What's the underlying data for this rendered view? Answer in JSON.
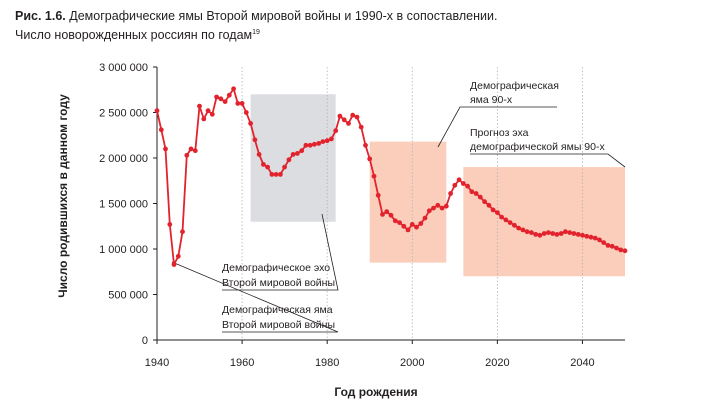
{
  "figure": {
    "label": "Рис. 1.6.",
    "title": "Демографические ямы Второй мировой войны и 1990-х в сопоставлении.",
    "subtitle": "Число новорожденных россиян по годам",
    "footnote": "19"
  },
  "colors": {
    "line": "#e2232d",
    "zone_gray": "#dcdde0",
    "zone_pink": "#fbcdbb",
    "axis": "#231f20",
    "grid": "#b3b3b3"
  },
  "annotations": [
    {
      "id": "echo-ww2",
      "lines": [
        "Демографическое эхо",
        "Второй мировой войны"
      ]
    },
    {
      "id": "pit-ww2",
      "lines": [
        "Демографическая яма",
        "Второй мировой войны"
      ]
    },
    {
      "id": "pit-90s",
      "lines": [
        "Демографическая",
        "яма 90-х"
      ]
    },
    {
      "id": "forecast-echo",
      "lines": [
        "Прогноз эха",
        "демографической ямы 90-х"
      ]
    }
  ],
  "chart_data": {
    "type": "line",
    "title": "",
    "xlabel": "Год рождения",
    "ylabel": "Число родившихся в данном году",
    "xlim": [
      1940,
      2050
    ],
    "ylim": [
      0,
      3000000
    ],
    "x_ticks": [
      1940,
      1960,
      1980,
      2000,
      2020,
      2040
    ],
    "x_tick_labels": [
      "1940",
      "1960",
      "1980",
      "2000",
      "2020",
      "2040"
    ],
    "y_ticks": [
      0,
      500000,
      1000000,
      1500000,
      2000000,
      2500000,
      3000000
    ],
    "y_tick_labels": [
      "0",
      "500 000",
      "1 000 000",
      "1 500 000",
      "2 000 000",
      "2 500 000",
      "3 000 000"
    ],
    "grid": "vertical",
    "highlight_zones": [
      {
        "x": [
          1962,
          1982
        ],
        "y": [
          1300000,
          2700000
        ],
        "color": "gray"
      },
      {
        "x": [
          1990,
          2008
        ],
        "y": [
          850000,
          2180000
        ],
        "color": "pink"
      },
      {
        "x": [
          2012,
          2050
        ],
        "y": [
          700000,
          1900000
        ],
        "color": "pink"
      }
    ],
    "series": [
      {
        "x": [
          1940,
          1941,
          1942,
          1943,
          1944,
          1945,
          1946,
          1947,
          1948,
          1949,
          1950,
          1951,
          1952,
          1953,
          1954,
          1955,
          1956,
          1957,
          1958,
          1959,
          1960,
          1961,
          1962,
          1963,
          1964,
          1965,
          1966,
          1967,
          1968,
          1969,
          1970,
          1971,
          1972,
          1973,
          1974,
          1975,
          1976,
          1977,
          1978,
          1979,
          1980,
          1981,
          1982,
          1983,
          1984,
          1985,
          1986,
          1987,
          1988,
          1989,
          1990,
          1991,
          1992,
          1993,
          1994,
          1995,
          1996,
          1997,
          1998,
          1999,
          2000,
          2001,
          2002,
          2003,
          2004,
          2005,
          2006,
          2007,
          2008,
          2009,
          2010,
          2011,
          2012,
          2013,
          2014,
          2015,
          2016,
          2017,
          2018,
          2019,
          2020,
          2021,
          2022,
          2023,
          2024,
          2025,
          2026,
          2027,
          2028,
          2029,
          2030,
          2031,
          2032,
          2033,
          2034,
          2035,
          2036,
          2037,
          2038,
          2039,
          2040,
          2041,
          2042,
          2043,
          2044,
          2045,
          2046,
          2047,
          2048,
          2049,
          2050
        ],
        "values": [
          2520000,
          2310000,
          2100000,
          1270000,
          830000,
          920000,
          1190000,
          2030000,
          2100000,
          2080000,
          2570000,
          2430000,
          2520000,
          2480000,
          2670000,
          2650000,
          2620000,
          2690000,
          2760000,
          2600000,
          2600000,
          2500000,
          2380000,
          2200000,
          2040000,
          1930000,
          1900000,
          1820000,
          1820000,
          1820000,
          1900000,
          1980000,
          2040000,
          2050000,
          2080000,
          2140000,
          2140000,
          2150000,
          2160000,
          2180000,
          2190000,
          2210000,
          2300000,
          2460000,
          2420000,
          2380000,
          2470000,
          2450000,
          2340000,
          2140000,
          1990000,
          1800000,
          1590000,
          1380000,
          1410000,
          1370000,
          1310000,
          1290000,
          1250000,
          1210000,
          1270000,
          1240000,
          1280000,
          1340000,
          1420000,
          1450000,
          1480000,
          1450000,
          1470000,
          1610000,
          1700000,
          1760000,
          1720000,
          1690000,
          1630000,
          1610000,
          1570000,
          1520000,
          1480000,
          1430000,
          1400000,
          1350000,
          1320000,
          1290000,
          1260000,
          1230000,
          1210000,
          1190000,
          1180000,
          1160000,
          1150000,
          1170000,
          1180000,
          1170000,
          1160000,
          1170000,
          1190000,
          1180000,
          1170000,
          1160000,
          1150000,
          1140000,
          1130000,
          1120000,
          1100000,
          1070000,
          1040000,
          1030000,
          1010000,
          990000,
          980000
        ]
      }
    ]
  }
}
